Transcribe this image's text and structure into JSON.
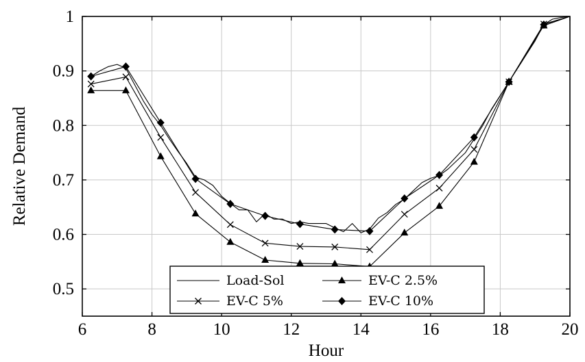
{
  "chart_data": {
    "type": "line",
    "title": "",
    "xlabel": "Hour",
    "ylabel": "Relative Demand",
    "xlim": [
      6,
      20
    ],
    "ylim": [
      0.45,
      1.0
    ],
    "x_ticks": [
      "6",
      "8",
      "10",
      "12",
      "14",
      "16",
      "18",
      "20"
    ],
    "y_ticks": [
      "0.5",
      "0.6",
      "0.7",
      "0.8",
      "0.9",
      "1"
    ],
    "grid": true,
    "legend_position": "bottom-center",
    "series": [
      {
        "name": "Load-Sol",
        "marker": "none",
        "x": [
          6.25,
          6.5,
          6.75,
          7.0,
          7.25,
          7.5,
          7.75,
          8.0,
          8.25,
          8.5,
          8.75,
          9.0,
          9.25,
          9.5,
          9.75,
          10.0,
          10.25,
          10.5,
          10.75,
          11.0,
          11.25,
          11.5,
          11.75,
          12.0,
          12.25,
          12.5,
          12.75,
          13.0,
          13.25,
          13.5,
          13.75,
          14.0,
          14.25,
          14.5,
          14.75,
          15.0,
          15.25,
          15.5,
          15.75,
          16.0,
          16.25,
          16.5,
          16.75,
          17.0,
          17.25,
          17.5,
          17.75,
          18.0,
          18.25,
          18.5,
          18.75,
          19.0,
          19.25,
          19.5,
          19.75,
          20.0
        ],
        "y": [
          0.89,
          0.9,
          0.908,
          0.912,
          0.905,
          0.875,
          0.845,
          0.82,
          0.8,
          0.775,
          0.752,
          0.73,
          0.705,
          0.7,
          0.69,
          0.67,
          0.657,
          0.645,
          0.645,
          0.623,
          0.638,
          0.628,
          0.628,
          0.62,
          0.623,
          0.62,
          0.62,
          0.62,
          0.612,
          0.605,
          0.62,
          0.603,
          0.61,
          0.63,
          0.64,
          0.655,
          0.665,
          0.68,
          0.695,
          0.703,
          0.708,
          0.72,
          0.735,
          0.75,
          0.775,
          0.8,
          0.83,
          0.855,
          0.88,
          0.905,
          0.93,
          0.955,
          0.985,
          0.995,
          0.998,
          1.0
        ]
      },
      {
        "name": "EV-C 2.5%",
        "marker": "triangle",
        "x": [
          6.25,
          7.25,
          8.25,
          9.25,
          10.25,
          11.25,
          12.25,
          13.25,
          14.25,
          15.25,
          16.25,
          17.25,
          18.25,
          19.25,
          20.0
        ],
        "y": [
          0.864,
          0.864,
          0.743,
          0.638,
          0.586,
          0.553,
          0.547,
          0.546,
          0.541,
          0.603,
          0.652,
          0.733,
          0.88,
          0.983,
          1.0
        ]
      },
      {
        "name": "EV-C 5%",
        "marker": "cross",
        "x": [
          6.25,
          7.25,
          8.25,
          9.25,
          10.25,
          11.25,
          12.25,
          13.25,
          14.25,
          15.25,
          16.25,
          17.25,
          18.25,
          19.25,
          20.0
        ],
        "y": [
          0.876,
          0.889,
          0.778,
          0.677,
          0.618,
          0.584,
          0.578,
          0.577,
          0.572,
          0.637,
          0.685,
          0.756,
          0.88,
          0.986,
          1.0
        ]
      },
      {
        "name": "EV-C 10%",
        "marker": "diamond",
        "x": [
          6.25,
          7.25,
          8.25,
          9.25,
          10.25,
          11.25,
          12.25,
          13.25,
          14.25,
          15.25,
          16.25,
          17.25,
          18.25,
          19.25,
          20.0
        ],
        "y": [
          0.89,
          0.908,
          0.805,
          0.702,
          0.656,
          0.634,
          0.619,
          0.609,
          0.606,
          0.666,
          0.709,
          0.778,
          0.88,
          0.985,
          1.0
        ]
      }
    ]
  }
}
